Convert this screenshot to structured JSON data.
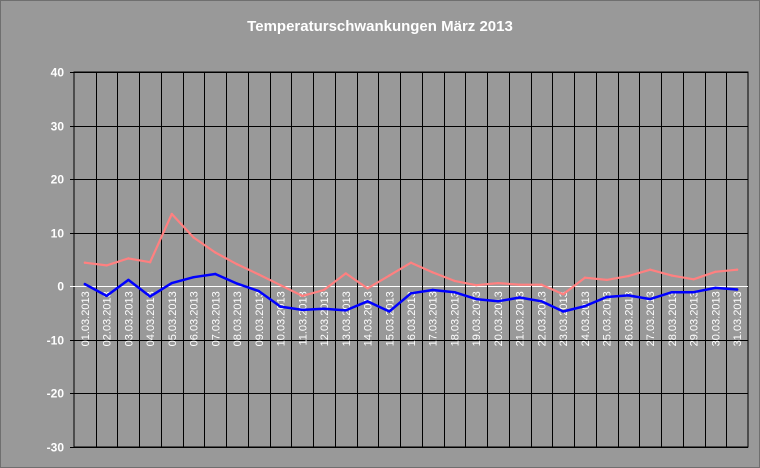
{
  "chart_data": {
    "type": "line",
    "title": "Temperaturschwankungen März 2013",
    "xlabel": "",
    "ylabel": "",
    "ylim": [
      -30,
      40
    ],
    "yticks": [
      40,
      30,
      20,
      10,
      0,
      -10,
      -20,
      -30
    ],
    "grid": true,
    "categories": [
      "01.03.2013",
      "02.03.2013",
      "03.03.2013",
      "04.03.2013",
      "05.03.2013",
      "06.03.2013",
      "07.03.2013",
      "08.03.2013",
      "09.03.2013",
      "10.03.2013",
      "11.03.2013",
      "12.03.2013",
      "13.03.2013",
      "14.03.2013",
      "15.03.2013",
      "16.03.2013",
      "17.03.2013",
      "18.03.2013",
      "19.03.2013",
      "20.03.2013",
      "21.03.2013",
      "22.03.2013",
      "23.03.2013",
      "24.03.2013",
      "25.03.2013",
      "26.03.2013",
      "27.03.2013",
      "28.03.2013",
      "29.03.2013",
      "30.03.2013",
      "31.03.2013"
    ],
    "series": [
      {
        "color": "#ff8080",
        "values": [
          4.4,
          3.9,
          5.2,
          4.5,
          13.5,
          9.1,
          6.3,
          4.1,
          2.2,
          0.2,
          -1.8,
          -0.7,
          2.4,
          -0.4,
          2.0,
          4.4,
          2.6,
          1.0,
          0.2,
          0.6,
          0.3,
          0.3,
          -1.5,
          1.6,
          1.2,
          1.9,
          3.1,
          2.0,
          1.3,
          2.7,
          3.1
        ]
      },
      {
        "color": "#0000ff",
        "values": [
          0.4,
          -1.8,
          1.2,
          -1.9,
          0.6,
          1.7,
          2.3,
          0.5,
          -0.9,
          -3.8,
          -4.4,
          -4.2,
          -4.5,
          -2.8,
          -4.7,
          -1.3,
          -0.7,
          -1.1,
          -2.4,
          -2.8,
          -2.1,
          -2.8,
          -4.7,
          -3.7,
          -2.0,
          -1.7,
          -2.4,
          -1.1,
          -1.1,
          -0.3,
          -0.6
        ]
      }
    ]
  }
}
